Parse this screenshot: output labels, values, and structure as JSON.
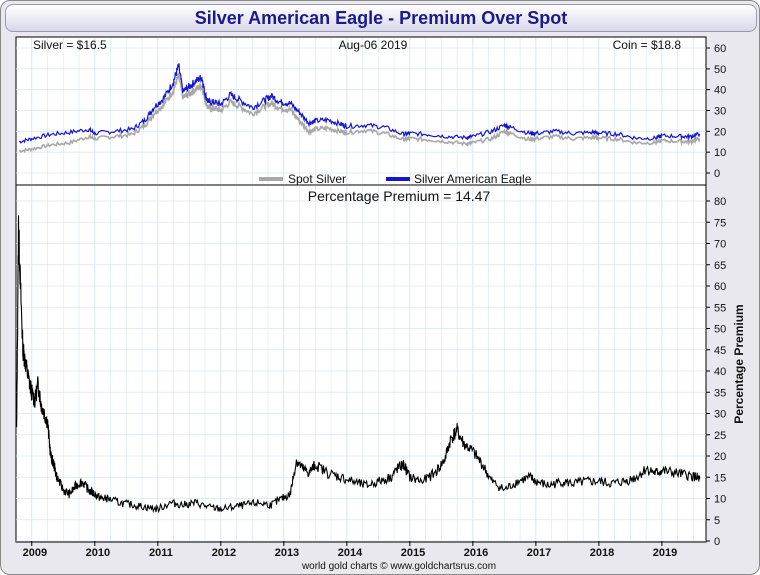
{
  "page": {
    "title": "Silver American Eagle - Premium Over Spot",
    "footer": "world gold charts © www.goldchartsrus.com"
  },
  "colors": {
    "spot": "#a8a8a8",
    "eagle": "#1515d0",
    "premium": "#000000",
    "grid": "#d6e8f0"
  },
  "chart_data": [
    {
      "type": "line",
      "panel": "prices",
      "info_left": "Silver = $16.5",
      "info_center": "Aug-06  2019",
      "info_right": "Coin = $18.8",
      "ylim": [
        0,
        60
      ],
      "yticks": [
        0,
        10,
        20,
        30,
        40,
        50,
        60
      ],
      "legend_position": "bottom-center",
      "grid": true,
      "series": [
        {
          "name": "Spot Silver",
          "color": "#a8a8a8",
          "x": [
            2008.8,
            2009.0,
            2009.3,
            2009.6,
            2009.9,
            2010.0,
            2010.3,
            2010.6,
            2010.8,
            2010.95,
            2011.1,
            2011.25,
            2011.33,
            2011.4,
            2011.5,
            2011.6,
            2011.7,
            2011.75,
            2011.8,
            2011.9,
            2012.0,
            2012.15,
            2012.3,
            2012.5,
            2012.7,
            2012.8,
            2012.95,
            2013.1,
            2013.25,
            2013.4,
            2013.5,
            2013.7,
            2013.9,
            2014.0,
            2014.3,
            2014.6,
            2014.9,
            2015.0,
            2015.3,
            2015.6,
            2015.9,
            2016.0,
            2016.3,
            2016.5,
            2016.6,
            2016.9,
            2017.0,
            2017.3,
            2017.6,
            2017.9,
            2018.0,
            2018.3,
            2018.6,
            2018.9,
            2019.0,
            2019.3,
            2019.45,
            2019.6
          ],
          "y": [
            10.5,
            11.5,
            13.5,
            14.5,
            17.5,
            16.5,
            17.5,
            18.5,
            23.0,
            29.0,
            33.0,
            40.0,
            47.0,
            36.0,
            38.0,
            40.0,
            42.0,
            35.0,
            31.0,
            31.0,
            30.0,
            34.0,
            32.0,
            28.5,
            32.0,
            33.5,
            31.0,
            30.5,
            25.0,
            20.0,
            21.0,
            21.5,
            20.0,
            19.5,
            20.5,
            19.0,
            16.0,
            16.5,
            16.0,
            15.0,
            14.0,
            14.5,
            16.5,
            20.0,
            19.0,
            16.0,
            16.5,
            17.5,
            16.5,
            17.0,
            16.8,
            16.3,
            14.5,
            14.5,
            15.5,
            15.2,
            15.0,
            16.5
          ]
        },
        {
          "name": "Silver American Eagle",
          "color": "#1515d0",
          "x": [
            2008.8,
            2009.0,
            2009.3,
            2009.6,
            2009.9,
            2010.0,
            2010.3,
            2010.6,
            2010.8,
            2010.95,
            2011.1,
            2011.25,
            2011.33,
            2011.4,
            2011.5,
            2011.6,
            2011.7,
            2011.75,
            2011.8,
            2011.9,
            2012.0,
            2012.15,
            2012.3,
            2012.5,
            2012.7,
            2012.8,
            2012.95,
            2013.1,
            2013.25,
            2013.4,
            2013.5,
            2013.7,
            2013.9,
            2014.0,
            2014.3,
            2014.6,
            2014.9,
            2015.0,
            2015.3,
            2015.6,
            2015.9,
            2016.0,
            2016.3,
            2016.5,
            2016.6,
            2016.9,
            2017.0,
            2017.3,
            2017.6,
            2017.9,
            2018.0,
            2018.3,
            2018.6,
            2018.9,
            2019.0,
            2019.3,
            2019.45,
            2019.6
          ],
          "y": [
            15.0,
            16.5,
            18.5,
            19.5,
            21.0,
            19.0,
            20.0,
            21.0,
            25.5,
            32.0,
            36.0,
            44.0,
            51.5,
            39.0,
            41.5,
            44.0,
            46.0,
            38.0,
            34.0,
            34.0,
            33.0,
            37.5,
            35.0,
            31.5,
            35.0,
            37.0,
            34.0,
            33.5,
            29.0,
            24.0,
            25.0,
            25.5,
            23.5,
            22.5,
            23.0,
            22.0,
            18.5,
            19.0,
            18.5,
            17.5,
            17.0,
            17.5,
            20.0,
            23.0,
            22.0,
            19.0,
            19.0,
            20.0,
            19.0,
            19.5,
            19.2,
            18.7,
            16.7,
            16.7,
            17.9,
            17.6,
            17.5,
            18.8
          ]
        }
      ]
    },
    {
      "type": "line",
      "panel": "premium",
      "title": "Percentage Premium = 14.47",
      "ylabel": "Percentage Premium",
      "ylim": [
        0,
        80
      ],
      "yticks": [
        0,
        5,
        10,
        15,
        20,
        25,
        30,
        35,
        40,
        45,
        50,
        55,
        60,
        65,
        70,
        75,
        80
      ],
      "xlim": [
        2008.75,
        2019.7
      ],
      "xticks": [
        "2009",
        "2010",
        "2011",
        "2012",
        "2013",
        "2014",
        "2015",
        "2016",
        "2017",
        "2018",
        "2019"
      ],
      "grid": true,
      "series": [
        {
          "name": "Percentage Premium",
          "color": "#000000",
          "x": [
            2008.76,
            2008.79,
            2008.82,
            2008.86,
            2008.9,
            2008.95,
            2009.0,
            2009.05,
            2009.1,
            2009.15,
            2009.2,
            2009.25,
            2009.3,
            2009.35,
            2009.4,
            2009.5,
            2009.6,
            2009.7,
            2009.8,
            2009.9,
            2010.0,
            2010.1,
            2010.2,
            2010.4,
            2010.6,
            2010.8,
            2011.0,
            2011.2,
            2011.4,
            2011.6,
            2011.8,
            2012.0,
            2012.2,
            2012.4,
            2012.6,
            2012.8,
            2012.97,
            2013.1,
            2013.2,
            2013.3,
            2013.4,
            2013.5,
            2013.7,
            2013.9,
            2014.1,
            2014.3,
            2014.5,
            2014.7,
            2014.8,
            2014.9,
            2015.0,
            2015.2,
            2015.4,
            2015.55,
            2015.65,
            2015.75,
            2015.85,
            2016.0,
            2016.15,
            2016.3,
            2016.5,
            2016.7,
            2016.9,
            2017.0,
            2017.2,
            2017.4,
            2017.6,
            2017.8,
            2018.0,
            2018.2,
            2018.4,
            2018.6,
            2018.75,
            2018.9,
            2019.0,
            2019.2,
            2019.4,
            2019.55,
            2019.6
          ],
          "y": [
            26,
            75,
            60,
            45,
            42,
            38,
            35,
            33,
            37,
            32,
            30,
            28,
            20,
            18,
            15,
            12,
            11,
            13,
            14,
            12,
            11,
            10,
            10,
            9,
            8.5,
            8,
            7.5,
            9,
            8.5,
            9,
            8,
            7.5,
            8,
            8.5,
            9,
            8.5,
            10,
            11,
            19,
            17,
            16,
            18,
            16,
            15,
            14,
            13,
            14,
            15,
            17,
            18,
            15,
            14,
            16,
            19,
            24,
            26,
            23,
            21,
            18,
            14,
            12,
            14,
            15,
            14,
            13,
            14,
            13.5,
            14,
            14,
            13.5,
            14,
            15,
            17,
            16,
            16.5,
            16,
            15.5,
            15,
            14.5
          ]
        }
      ]
    }
  ]
}
